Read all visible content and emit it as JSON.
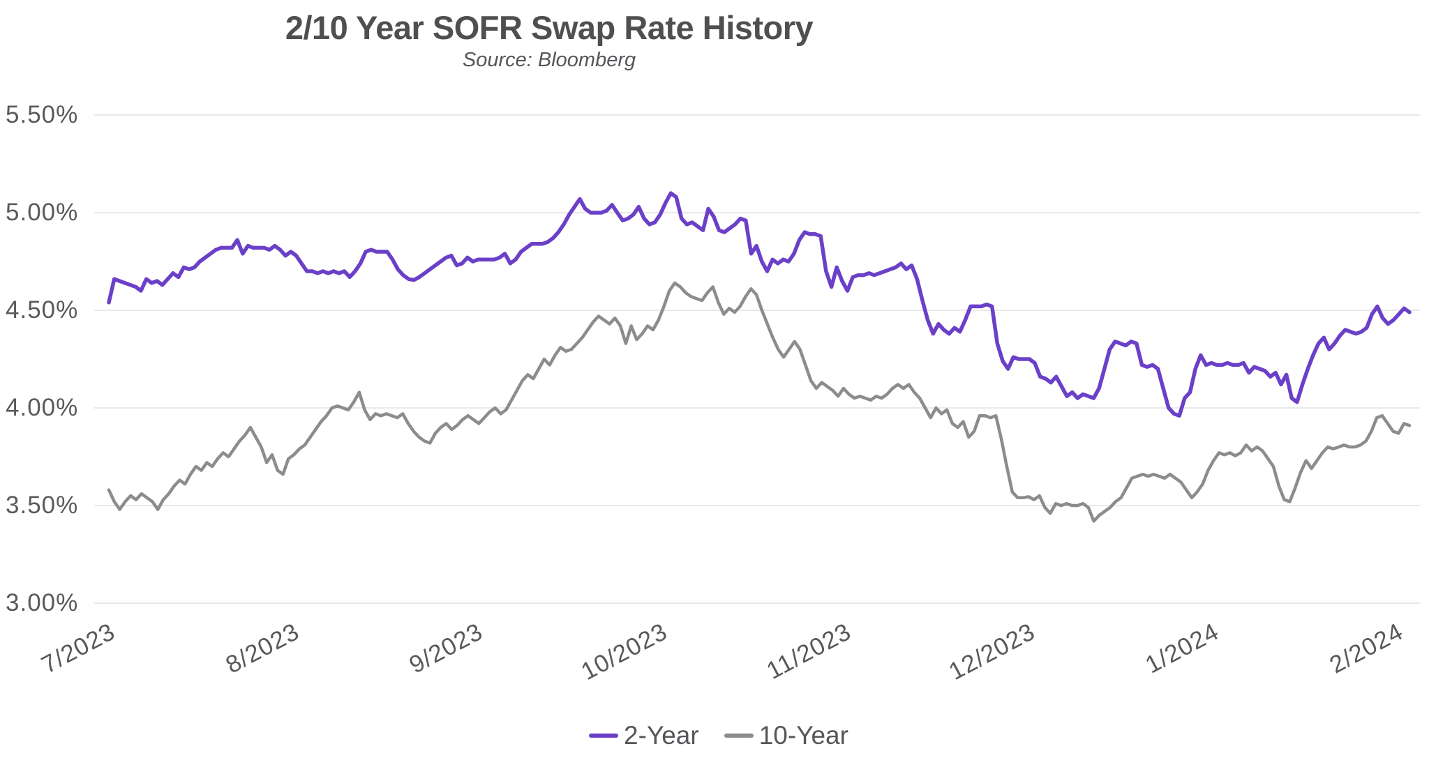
{
  "chart_data": {
    "type": "line",
    "title": "2/10 Year SOFR Swap Rate History",
    "subtitle": "Source: Bloomberg",
    "xlabel": "",
    "ylabel": "",
    "ylim": [
      3.0,
      5.5
    ],
    "grid": true,
    "legend_position": "bottom-center",
    "background_color": "#ffffff",
    "gridline_color": "#e9e9ea",
    "text_color": "#58595c",
    "y_ticks": [
      {
        "label": "5.50%",
        "value": 5.5
      },
      {
        "label": "5.00%",
        "value": 5.0
      },
      {
        "label": "4.50%",
        "value": 4.5
      },
      {
        "label": "4.00%",
        "value": 4.0
      },
      {
        "label": "3.50%",
        "value": 3.5
      },
      {
        "label": "3.00%",
        "value": 3.0
      }
    ],
    "x_ticks": [
      {
        "label": "7/2023",
        "month_index": 0
      },
      {
        "label": "8/2023",
        "month_index": 1
      },
      {
        "label": "9/2023",
        "month_index": 2
      },
      {
        "label": "10/2023",
        "month_index": 3
      },
      {
        "label": "11/2023",
        "month_index": 4
      },
      {
        "label": "12/2023",
        "month_index": 5
      },
      {
        "label": "1/2024",
        "month_index": 6
      },
      {
        "label": "2/2024",
        "month_index": 7
      }
    ],
    "series": [
      {
        "name": "2-Year",
        "color": "#6b40c8",
        "values": [
          4.54,
          4.66,
          4.65,
          4.64,
          4.63,
          4.62,
          4.6,
          4.66,
          4.64,
          4.65,
          4.63,
          4.66,
          4.69,
          4.67,
          4.72,
          4.71,
          4.72,
          4.75,
          4.77,
          4.79,
          4.81,
          4.82,
          4.82,
          4.82,
          4.86,
          4.79,
          4.83,
          4.82,
          4.82,
          4.82,
          4.81,
          4.83,
          4.81,
          4.78,
          4.8,
          4.78,
          4.74,
          4.7,
          4.7,
          4.69,
          4.7,
          4.69,
          4.7,
          4.69,
          4.7,
          4.67,
          4.7,
          4.74,
          4.8,
          4.81,
          4.8,
          4.8,
          4.8,
          4.76,
          4.71,
          4.68,
          4.66,
          4.655,
          4.67,
          4.69,
          4.71,
          4.73,
          4.75,
          4.77,
          4.78,
          4.73,
          4.74,
          4.77,
          4.75,
          4.76,
          4.76,
          4.76,
          4.76,
          4.77,
          4.79,
          4.74,
          4.76,
          4.8,
          4.82,
          4.84,
          4.84,
          4.84,
          4.85,
          4.87,
          4.9,
          4.94,
          4.99,
          5.03,
          5.07,
          5.02,
          5.0,
          5.0,
          5.0,
          5.01,
          5.04,
          5.0,
          4.96,
          4.97,
          4.99,
          5.03,
          4.97,
          4.94,
          4.95,
          4.99,
          5.05,
          5.1,
          5.08,
          4.97,
          4.94,
          4.95,
          4.93,
          4.91,
          5.02,
          4.98,
          4.91,
          4.9,
          4.92,
          4.94,
          4.97,
          4.96,
          4.79,
          4.83,
          4.75,
          4.7,
          4.76,
          4.74,
          4.76,
          4.75,
          4.79,
          4.86,
          4.9,
          4.89,
          4.89,
          4.88,
          4.7,
          4.62,
          4.72,
          4.65,
          4.6,
          4.67,
          4.68,
          4.68,
          4.69,
          4.68,
          4.69,
          4.7,
          4.71,
          4.72,
          4.74,
          4.71,
          4.73,
          4.66,
          4.55,
          4.45,
          4.38,
          4.43,
          4.4,
          4.38,
          4.41,
          4.39,
          4.45,
          4.52,
          4.52,
          4.52,
          4.53,
          4.52,
          4.33,
          4.24,
          4.2,
          4.26,
          4.25,
          4.25,
          4.25,
          4.23,
          4.16,
          4.15,
          4.13,
          4.16,
          4.11,
          4.06,
          4.08,
          4.05,
          4.07,
          4.06,
          4.05,
          4.1,
          4.2,
          4.3,
          4.34,
          4.33,
          4.32,
          4.34,
          4.33,
          4.22,
          4.21,
          4.22,
          4.2,
          4.1,
          4.0,
          3.97,
          3.96,
          4.05,
          4.08,
          4.2,
          4.27,
          4.22,
          4.23,
          4.22,
          4.22,
          4.23,
          4.22,
          4.22,
          4.23,
          4.18,
          4.21,
          4.2,
          4.19,
          4.16,
          4.18,
          4.12,
          4.17,
          4.05,
          4.03,
          4.12,
          4.2,
          4.27,
          4.33,
          4.36,
          4.3,
          4.33,
          4.37,
          4.4,
          4.39,
          4.38,
          4.39,
          4.41,
          4.48,
          4.52,
          4.46,
          4.43,
          4.45,
          4.48,
          4.51,
          4.49
        ]
      },
      {
        "name": "10-Year",
        "color": "#8c8c8c",
        "values": [
          3.58,
          3.52,
          3.48,
          3.52,
          3.55,
          3.53,
          3.56,
          3.54,
          3.52,
          3.48,
          3.53,
          3.56,
          3.6,
          3.63,
          3.61,
          3.66,
          3.7,
          3.68,
          3.72,
          3.7,
          3.74,
          3.77,
          3.75,
          3.79,
          3.83,
          3.86,
          3.9,
          3.85,
          3.8,
          3.72,
          3.76,
          3.68,
          3.66,
          3.74,
          3.76,
          3.79,
          3.81,
          3.85,
          3.89,
          3.93,
          3.96,
          4.0,
          4.01,
          4.0,
          3.99,
          4.03,
          4.08,
          3.99,
          3.94,
          3.97,
          3.96,
          3.97,
          3.96,
          3.95,
          3.97,
          3.92,
          3.88,
          3.85,
          3.83,
          3.82,
          3.87,
          3.9,
          3.92,
          3.89,
          3.91,
          3.94,
          3.96,
          3.94,
          3.92,
          3.95,
          3.98,
          4.0,
          3.97,
          3.99,
          4.04,
          4.09,
          4.14,
          4.17,
          4.15,
          4.2,
          4.25,
          4.22,
          4.27,
          4.31,
          4.29,
          4.3,
          4.33,
          4.36,
          4.4,
          4.44,
          4.47,
          4.45,
          4.43,
          4.46,
          4.42,
          4.33,
          4.42,
          4.35,
          4.38,
          4.42,
          4.4,
          4.45,
          4.52,
          4.6,
          4.64,
          4.62,
          4.59,
          4.57,
          4.56,
          4.55,
          4.59,
          4.62,
          4.54,
          4.48,
          4.51,
          4.49,
          4.52,
          4.57,
          4.61,
          4.58,
          4.5,
          4.43,
          4.36,
          4.3,
          4.26,
          4.3,
          4.34,
          4.3,
          4.22,
          4.14,
          4.1,
          4.13,
          4.11,
          4.09,
          4.06,
          4.1,
          4.07,
          4.05,
          4.06,
          4.05,
          4.04,
          4.06,
          4.05,
          4.07,
          4.1,
          4.12,
          4.1,
          4.12,
          4.08,
          4.05,
          4.0,
          3.95,
          4.0,
          3.97,
          3.99,
          3.92,
          3.9,
          3.93,
          3.85,
          3.88,
          3.96,
          3.96,
          3.95,
          3.96,
          3.84,
          3.7,
          3.57,
          3.54,
          3.54,
          3.545,
          3.53,
          3.55,
          3.49,
          3.46,
          3.51,
          3.5,
          3.51,
          3.5,
          3.5,
          3.51,
          3.49,
          3.42,
          3.45,
          3.47,
          3.49,
          3.52,
          3.54,
          3.59,
          3.64,
          3.65,
          3.66,
          3.65,
          3.66,
          3.65,
          3.64,
          3.66,
          3.64,
          3.62,
          3.58,
          3.54,
          3.57,
          3.61,
          3.68,
          3.73,
          3.77,
          3.76,
          3.77,
          3.755,
          3.77,
          3.81,
          3.78,
          3.8,
          3.78,
          3.74,
          3.7,
          3.6,
          3.53,
          3.52,
          3.59,
          3.67,
          3.73,
          3.69,
          3.73,
          3.77,
          3.8,
          3.79,
          3.8,
          3.81,
          3.8,
          3.8,
          3.81,
          3.83,
          3.88,
          3.95,
          3.96,
          3.92,
          3.88,
          3.87,
          3.92,
          3.91
        ]
      }
    ]
  }
}
